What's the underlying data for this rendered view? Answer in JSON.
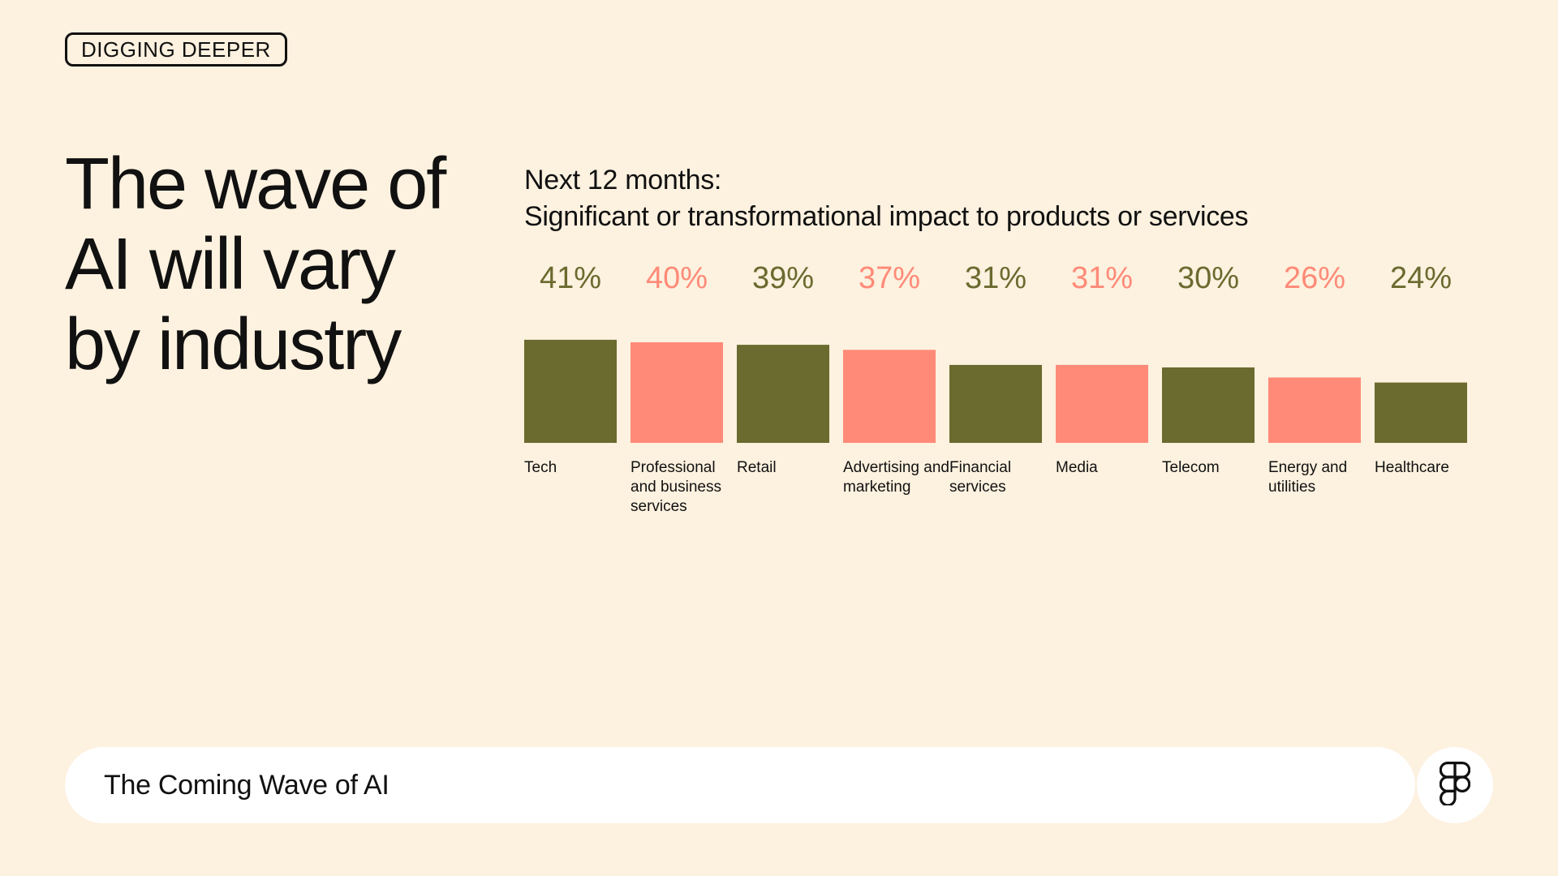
{
  "badge": "DIGGING DEEPER",
  "headline": "The wave of AI will vary by industry",
  "subtitle_line1": "Next 12 months:",
  "subtitle_line2": "Significant or transformational impact to products or services",
  "footer": {
    "title": "The Coming Wave of AI",
    "logo_icon": "figma-logo-icon"
  },
  "colors": {
    "background": "#FDF1DF",
    "olive": "#6B6A2F",
    "salmon": "#FF8A78",
    "text": "#111111"
  },
  "chart_data": {
    "type": "bar",
    "title": "Next 12 months: Significant or transformational impact to products or services",
    "categories": [
      "Tech",
      "Professional and business services",
      "Retail",
      "Advertising and marketing",
      "Financial services",
      "Media",
      "Telecom",
      "Energy and utilities",
      "Healthcare"
    ],
    "values": [
      41,
      40,
      39,
      37,
      31,
      31,
      30,
      26,
      24
    ],
    "value_labels": [
      "41%",
      "40%",
      "39%",
      "37%",
      "31%",
      "31%",
      "30%",
      "26%",
      "24%"
    ],
    "bar_colors": [
      "#6B6A2F",
      "#FF8A78",
      "#6B6A2F",
      "#FF8A78",
      "#6B6A2F",
      "#FF8A78",
      "#6B6A2F",
      "#FF8A78",
      "#6B6A2F"
    ],
    "unit": "%",
    "grid": false,
    "legend": "none"
  }
}
